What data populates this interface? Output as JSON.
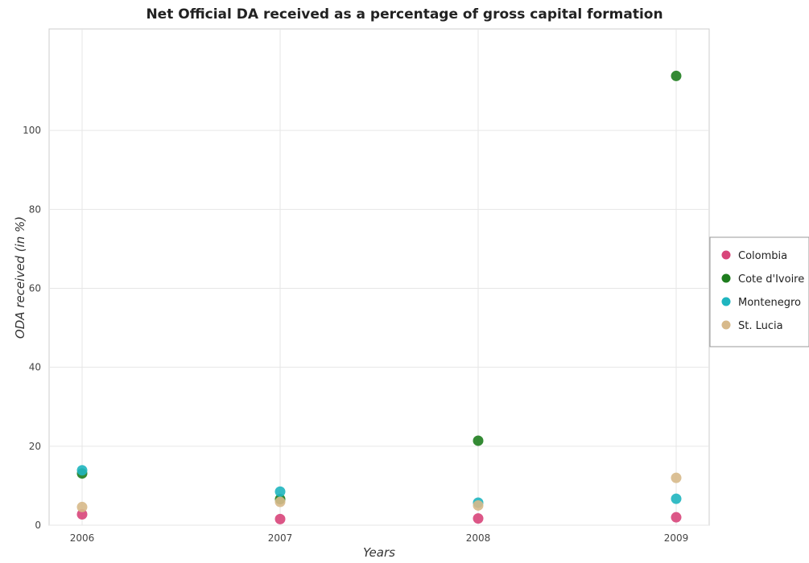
{
  "title": "Net Official DA received as a percentage of gross capital formation",
  "chart_data": {
    "type": "scatter",
    "title": "Net Official DA received as a percentage of gross capital formation",
    "xlabel": "Years",
    "ylabel": "ODA received (in %)",
    "categories": [
      "2006",
      "2007",
      "2008",
      "2009"
    ],
    "ylim": [
      0,
      120
    ],
    "yticks": [
      0,
      20,
      40,
      60,
      80,
      100
    ],
    "grid": true,
    "legend_position": "right",
    "series": [
      {
        "name": "Colombia",
        "color": "#d8457a",
        "values": [
          2.75,
          1.55,
          1.7,
          2.0
        ]
      },
      {
        "name": "Cote d'Ivoire",
        "color": "#1e7d1e",
        "values": [
          13.1,
          6.6,
          21.4,
          113.8
        ]
      },
      {
        "name": "Montenegro",
        "color": "#1fb5bf",
        "values": [
          13.9,
          8.5,
          5.7,
          6.7
        ]
      },
      {
        "name": "St. Lucia",
        "color": "#d7b98a",
        "values": [
          4.6,
          5.9,
          5.0,
          12.0
        ]
      }
    ]
  }
}
